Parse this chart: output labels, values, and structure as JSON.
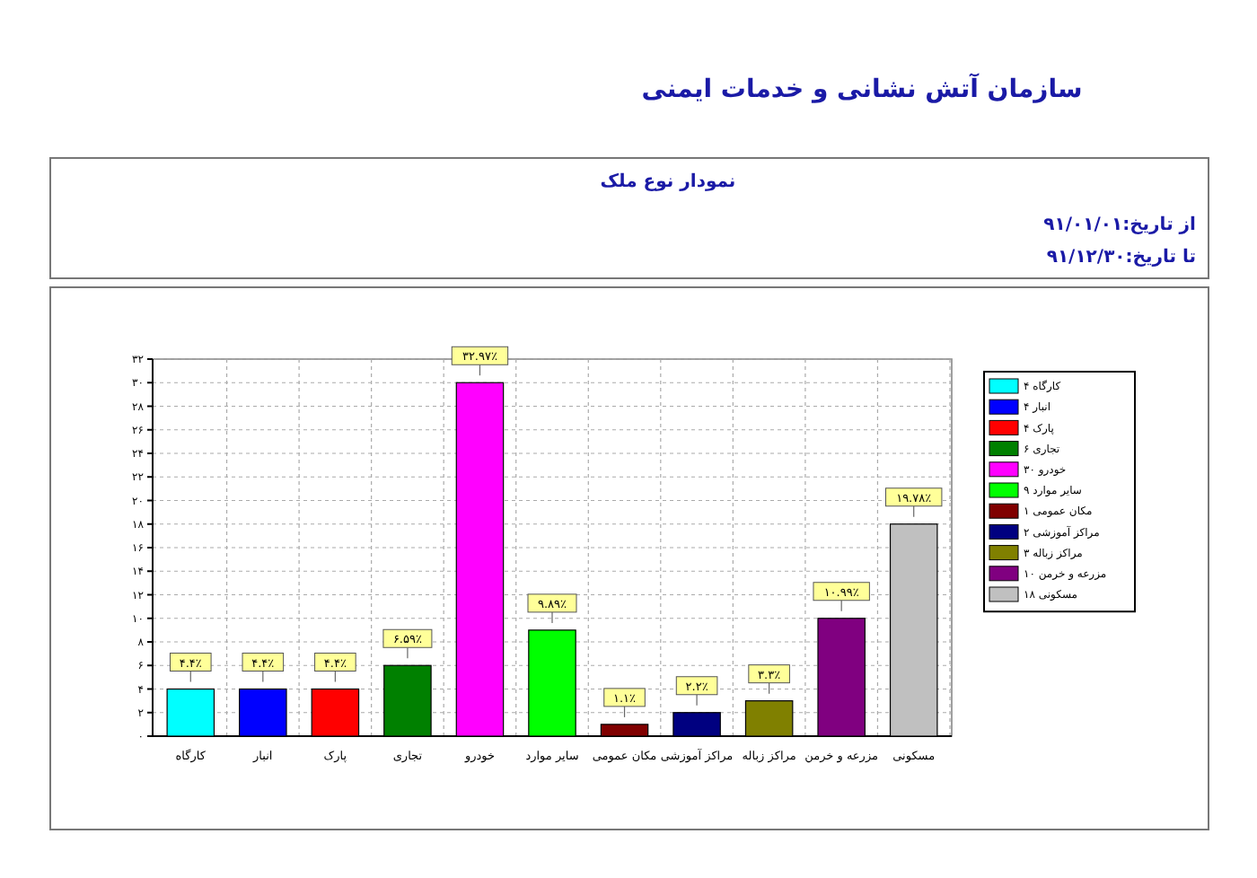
{
  "chart_data": {
    "type": "bar",
    "title": "سازمان آتش نشانی و خدمات ایمنی",
    "subtitle": "نمودار نوع ملک",
    "annotations": [
      "از تاریخ:۹۱/۰۱/۰۱",
      "تا تاریخ:۹۱/۱۲/۳۰",
      {
        "text": "۴.۴٪",
        "x": "کارگاه",
        "y": 4
      },
      {
        "text": "۴.۴٪",
        "x": "انبار",
        "y": 4
      },
      {
        "text": "۴.۴٪",
        "x": "پارک",
        "y": 4
      },
      {
        "text": "۶.۵۹٪",
        "x": "تجاری",
        "y": 6
      },
      {
        "text": "۳۲.۹۷٪",
        "x": "خودرو",
        "y": 30
      },
      {
        "text": "۹.۸۹٪",
        "x": "سایر موارد",
        "y": 9
      },
      {
        "text": "۱.۱٪",
        "x": "مکان عمومی",
        "y": 1
      },
      {
        "text": "۲.۲٪",
        "x": "مراکز آموزشی",
        "y": 2
      },
      {
        "text": "۳.۳٪",
        "x": "مراکز زباله",
        "y": 3
      },
      {
        "text": "۱۰.۹۹٪",
        "x": "مزرعه و خرمن",
        "y": 10
      },
      {
        "text": "۱۹.۷۸٪",
        "x": "مسکونی",
        "y": 18
      }
    ],
    "categories": [
      "کارگاه",
      "انبار",
      "پارک",
      "تجاری",
      "خودرو",
      "سایر موارد",
      "مکان عمومی",
      "مراکز آموزشی",
      "مراکز زباله",
      "مزرعه و خرمن",
      "مسکونی"
    ],
    "stacked": true,
    "series": [
      {
        "name": "کارگاه ۴",
        "color": "#00ffff",
        "values": [
          4,
          null,
          null,
          null,
          null,
          null,
          null,
          null,
          null,
          null,
          null
        ]
      },
      {
        "name": "انبار ۴",
        "color": "#0000ff",
        "values": [
          null,
          4,
          null,
          null,
          null,
          null,
          null,
          null,
          null,
          null,
          null
        ]
      },
      {
        "name": "پارک ۴",
        "color": "#ff0000",
        "values": [
          null,
          null,
          4,
          null,
          null,
          null,
          null,
          null,
          null,
          null,
          null
        ]
      },
      {
        "name": "تجاری ۶",
        "color": "#008000",
        "values": [
          null,
          null,
          null,
          6,
          null,
          null,
          null,
          null,
          null,
          null,
          null
        ]
      },
      {
        "name": "خودرو ۳۰",
        "color": "#ff00ff",
        "values": [
          null,
          null,
          null,
          null,
          30,
          null,
          null,
          null,
          null,
          null,
          null
        ]
      },
      {
        "name": "سایر موارد ۹",
        "color": "#00ff00",
        "values": [
          null,
          null,
          null,
          null,
          null,
          9,
          null,
          null,
          null,
          null,
          null
        ]
      },
      {
        "name": "مکان عمومی ۱",
        "color": "#800000",
        "values": [
          null,
          null,
          null,
          null,
          null,
          null,
          1,
          null,
          null,
          null,
          null
        ]
      },
      {
        "name": "مراکز آموزشی ۲",
        "color": "#000080",
        "values": [
          null,
          null,
          null,
          null,
          null,
          null,
          null,
          2,
          null,
          null,
          null
        ]
      },
      {
        "name": "مراکز زباله ۳",
        "color": "#808000",
        "values": [
          null,
          null,
          null,
          null,
          null,
          null,
          null,
          null,
          3,
          null,
          null
        ]
      },
      {
        "name": "مزرعه و خرمن ۱۰",
        "color": "#800080",
        "values": [
          null,
          null,
          null,
          null,
          null,
          null,
          null,
          null,
          null,
          10,
          null
        ]
      },
      {
        "name": "مسکونی ۱۸",
        "color": "#c0c0c0",
        "values": [
          null,
          null,
          null,
          null,
          null,
          null,
          null,
          null,
          null,
          null,
          18
        ]
      }
    ],
    "ylim": [
      0,
      32
    ],
    "yticks": [
      {
        "value": 0,
        "label": "۰"
      },
      {
        "value": 2,
        "label": "۲"
      },
      {
        "value": 4,
        "label": "۴"
      },
      {
        "value": 6,
        "label": "۶"
      },
      {
        "value": 8,
        "label": "۸"
      },
      {
        "value": 10,
        "label": "۱۰"
      },
      {
        "value": 12,
        "label": "۱۲"
      },
      {
        "value": 14,
        "label": "۱۴"
      },
      {
        "value": 16,
        "label": "۱۶"
      },
      {
        "value": 18,
        "label": "۱۸"
      },
      {
        "value": 20,
        "label": "۲۰"
      },
      {
        "value": 22,
        "label": "۲۲"
      },
      {
        "value": 24,
        "label": "۲۴"
      },
      {
        "value": 26,
        "label": "۲۶"
      },
      {
        "value": 28,
        "label": "۲۸"
      },
      {
        "value": 30,
        "label": "۳۰"
      },
      {
        "value": 32,
        "label": "۳۲"
      }
    ],
    "grid": true,
    "legend": "right"
  }
}
